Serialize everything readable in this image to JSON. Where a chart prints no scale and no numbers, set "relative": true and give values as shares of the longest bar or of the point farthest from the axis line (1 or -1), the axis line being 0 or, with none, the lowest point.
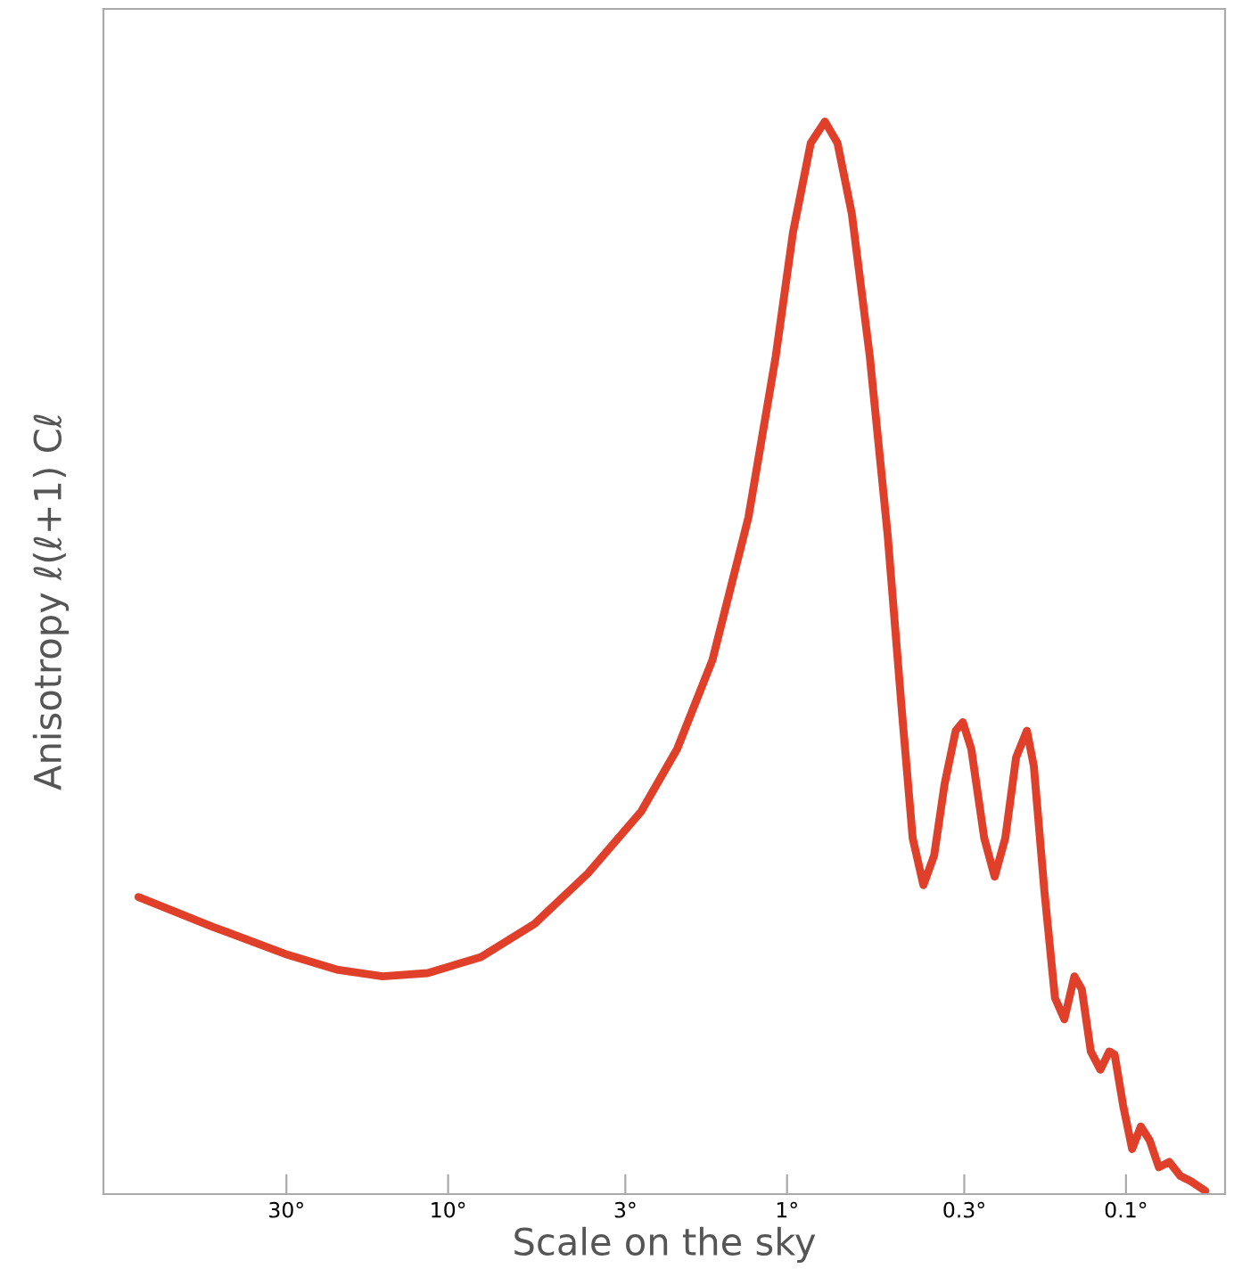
{
  "chart_data": {
    "type": "line",
    "xlabel": "Scale on the sky",
    "ylabel": "Anisotropy ℓ(ℓ+1) Cℓ",
    "relative": true,
    "log": "x",
    "grid": false,
    "marker": "none",
    "line_style": "solid",
    "tick_labels": "x",
    "xlim": [
      104,
      0.051
    ],
    "xticks": [
      {
        "value": 30,
        "label": "30°"
      },
      {
        "value": 10,
        "label": "10°"
      },
      {
        "value": 3,
        "label": "3°"
      },
      {
        "value": 1,
        "label": "1°"
      },
      {
        "value": 0.3,
        "label": "0.3°"
      },
      {
        "value": 0.1,
        "label": "0.1°"
      }
    ],
    "series": [
      {
        "color": "#e0402a",
        "x": [
          82,
          49.3,
          30.3,
          21.1,
          15.6,
          11.5,
          8.0,
          5.56,
          3.87,
          2.69,
          2.11,
          1.66,
          1.3,
          1.08,
          0.96,
          0.851,
          0.773,
          0.71,
          0.644,
          0.57,
          0.505,
          0.458,
          0.426,
          0.396,
          0.368,
          0.343,
          0.318,
          0.303,
          0.286,
          0.262,
          0.244,
          0.227,
          0.211,
          0.196,
          0.187,
          0.174,
          0.162,
          0.152,
          0.142,
          0.135,
          0.127,
          0.119,
          0.112,
          0.108,
          0.102,
          0.0959,
          0.0904,
          0.0851,
          0.08,
          0.0745,
          0.0692,
          0.0644,
          0.0583
        ],
        "values": [
          0.277,
          0.249,
          0.224,
          0.209,
          0.203,
          0.206,
          0.221,
          0.252,
          0.299,
          0.357,
          0.415,
          0.498,
          0.631,
          0.781,
          0.897,
          0.98,
          1,
          0.98,
          0.914,
          0.781,
          0.615,
          0.449,
          0.332,
          0.288,
          0.316,
          0.382,
          0.432,
          0.44,
          0.415,
          0.332,
          0.296,
          0.332,
          0.407,
          0.432,
          0.399,
          0.282,
          0.183,
          0.163,
          0.203,
          0.191,
          0.133,
          0.116,
          0.133,
          0.13,
          0.083,
          0.042,
          0.063,
          0.05,
          0.025,
          0.03,
          0.017,
          0.012,
          0.003
        ]
      }
    ]
  }
}
